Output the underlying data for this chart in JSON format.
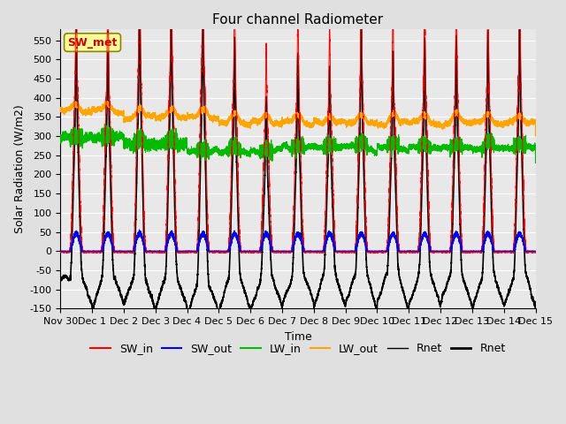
{
  "title": "Four channel Radiometer",
  "xlabel": "Time",
  "ylabel": "Solar Radiation (W/m2)",
  "ylim": [
    -150,
    580
  ],
  "yticks": [
    -150,
    -100,
    -50,
    0,
    50,
    100,
    150,
    200,
    250,
    300,
    350,
    400,
    450,
    500,
    550
  ],
  "days": 15,
  "xtick_labels": [
    "Nov 30",
    "Dec 1",
    "Dec 2",
    "Dec 3",
    "Dec 4",
    "Dec 5",
    "Dec 6",
    "Dec 7",
    "Dec 8",
    "Dec 9",
    "Dec 10",
    "Dec 11",
    "Dec 12",
    "Dec 13",
    "Dec 14",
    "Dec 15"
  ],
  "colors": {
    "SW_in": "#FF0000",
    "SW_out": "#0000FF",
    "LW_in": "#00BB00",
    "LW_out": "#FFA500",
    "Rnet1": "#000000",
    "Rnet2": "#000000"
  },
  "annotation_text": "SW_met",
  "annotation_color": "#CC0000",
  "annotation_bg": "#FFFF99",
  "background_color": "#E0E0E0",
  "plot_bg": "#E8E8E8",
  "grid_color": "#FFFFFF",
  "title_fontsize": 11,
  "label_fontsize": 9,
  "tick_fontsize": 8,
  "legend_fontsize": 9
}
